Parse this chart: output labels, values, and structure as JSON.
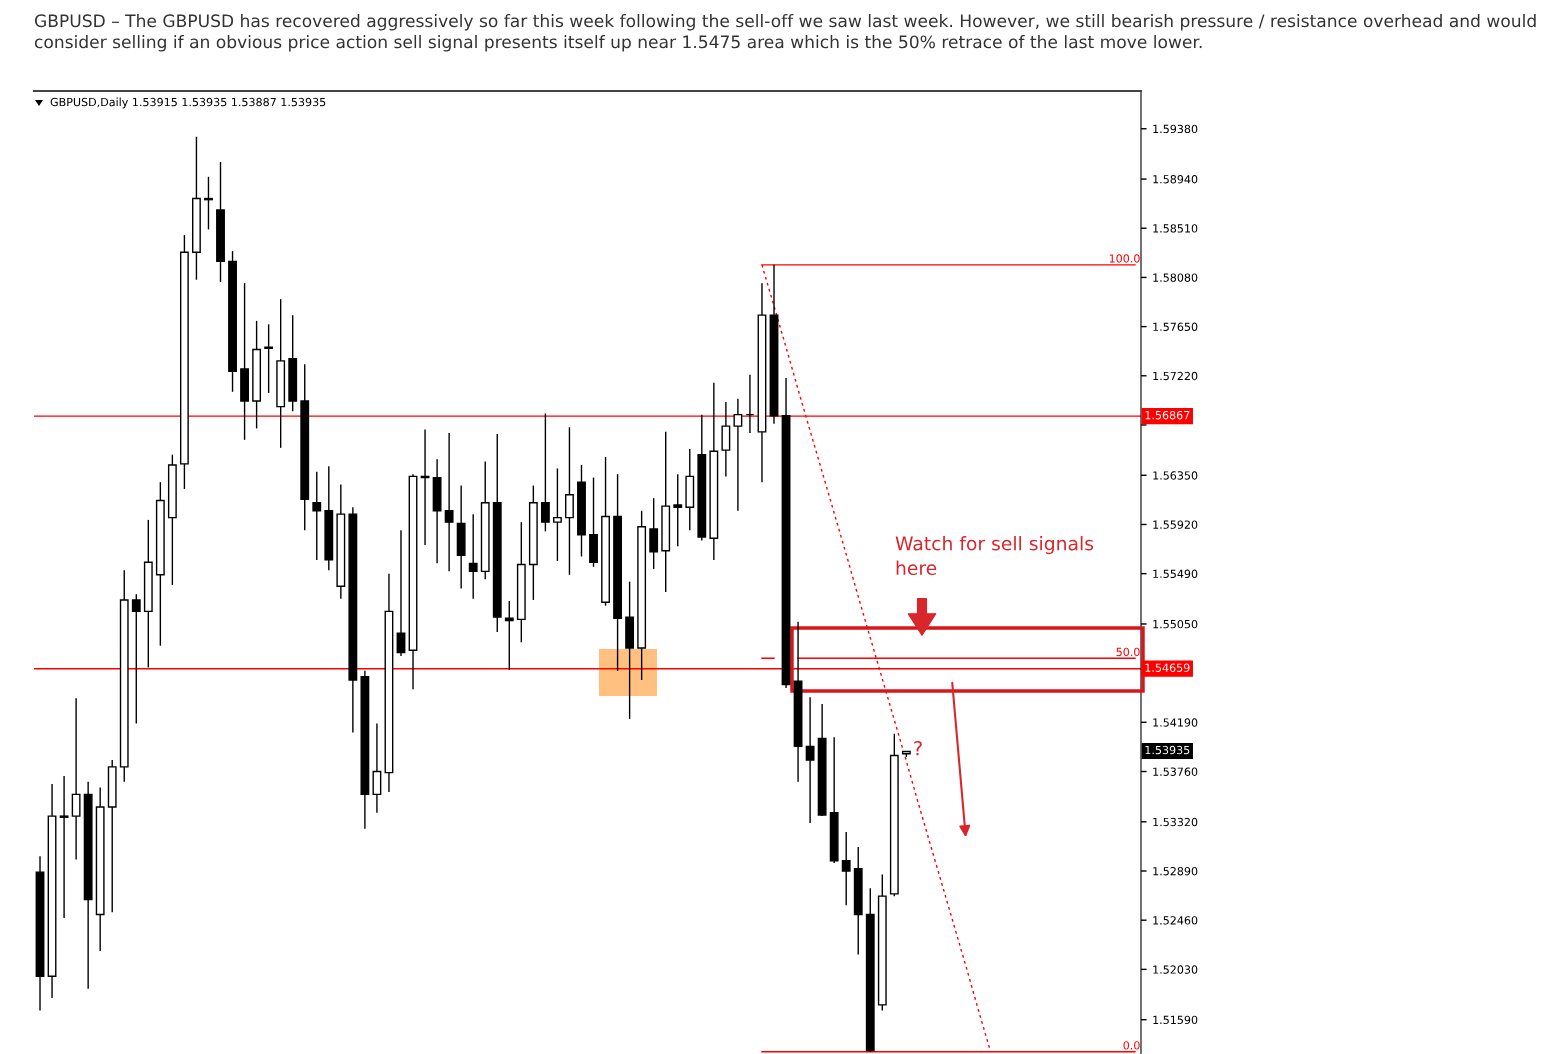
{
  "chart_data": {
    "type": "candlestick",
    "title": "GBPUSD – The GBPUSD has recovered aggressively so far this week following the sell-off we saw last week. However, we still bearish pressure / resistance overhead and would consider selling if an obvious price action sell signal presents itself up near 1.5475 area which is the 50% retrace of the last move lower.",
    "color": "#000000",
    "categories": [
      null,
      null,
      null,
      null,
      null,
      null,
      null,
      null,
      null,
      null,
      null,
      null,
      null,
      null,
      null,
      null,
      null,
      null,
      null,
      null,
      null,
      null,
      null,
      null,
      null,
      null,
      null,
      null,
      null,
      null,
      null,
      null,
      null,
      null,
      null,
      null,
      null,
      null,
      null,
      null,
      null,
      null,
      null,
      null,
      null,
      null,
      null,
      null,
      null,
      null,
      null,
      null,
      null,
      null,
      null,
      null,
      null,
      null,
      null,
      null,
      null,
      null,
      null,
      null,
      null,
      null,
      null,
      null,
      null,
      null,
      null,
      null,
      null,
      null,
      null,
      null,
      null,
      null,
      null,
      null,
      null,
      null,
      null,
      null,
      null,
      null,
      null,
      null,
      null,
      null,
      null,
      null
    ],
    "ohlc": [
      [
        1.5288,
        1.5302,
        1.5167,
        1.5197
      ],
      [
        1.5197,
        1.5365,
        1.5178,
        1.5337
      ],
      [
        1.5337,
        1.5372,
        1.5248,
        1.5336
      ],
      [
        1.5337,
        1.544,
        1.5299,
        1.5356
      ],
      [
        1.5356,
        1.5367,
        1.5186,
        1.5264
      ],
      [
        1.5251,
        1.5362,
        1.5219,
        1.5345
      ],
      [
        1.5345,
        1.5386,
        1.5253,
        1.538
      ],
      [
        1.538,
        1.5552,
        1.5367,
        1.5526
      ],
      [
        1.5526,
        1.5531,
        1.5418,
        1.5516
      ],
      [
        1.5516,
        1.5596,
        1.5467,
        1.5559
      ],
      [
        1.5548,
        1.5629,
        1.5486,
        1.5613
      ],
      [
        1.5598,
        1.5653,
        1.5539,
        1.5644
      ],
      [
        1.5645,
        1.5845,
        1.5623,
        1.583
      ],
      [
        1.583,
        1.5931,
        1.5806,
        1.5877
      ],
      [
        1.5877,
        1.5896,
        1.585,
        1.5876
      ],
      [
        1.5867,
        1.5909,
        1.5804,
        1.5822
      ],
      [
        1.5822,
        1.5831,
        1.5708,
        1.5726
      ],
      [
        1.5728,
        1.5803,
        1.5666,
        1.57
      ],
      [
        1.57,
        1.577,
        1.5676,
        1.5745
      ],
      [
        1.5747,
        1.5767,
        1.5707,
        1.5746
      ],
      [
        1.5695,
        1.5789,
        1.5659,
        1.5735
      ],
      [
        1.5737,
        1.5775,
        1.5691,
        1.57
      ],
      [
        1.57,
        1.5732,
        1.5587,
        1.5614
      ],
      [
        1.5611,
        1.5638,
        1.5561,
        1.5604
      ],
      [
        1.5604,
        1.5643,
        1.5552,
        1.5561
      ],
      [
        1.5538,
        1.5627,
        1.5527,
        1.5601
      ],
      [
        1.5601,
        1.5607,
        1.541,
        1.5456
      ],
      [
        1.5459,
        1.5464,
        1.5326,
        1.5356
      ],
      [
        1.5356,
        1.5418,
        1.534,
        1.5376
      ],
      [
        1.5375,
        1.5549,
        1.5358,
        1.5516
      ],
      [
        1.5497,
        1.5587,
        1.5477,
        1.548
      ],
      [
        1.5482,
        1.5636,
        1.5448,
        1.5634
      ],
      [
        1.5634,
        1.5675,
        1.5574,
        1.5633
      ],
      [
        1.5633,
        1.5649,
        1.5558,
        1.5604
      ],
      [
        1.5604,
        1.5672,
        1.5551,
        1.5594
      ],
      [
        1.5593,
        1.5626,
        1.5536,
        1.5565
      ],
      [
        1.5558,
        1.5601,
        1.5527,
        1.5551
      ],
      [
        1.5551,
        1.5647,
        1.5544,
        1.5611
      ],
      [
        1.5611,
        1.5671,
        1.5498,
        1.5511
      ],
      [
        1.551,
        1.5525,
        1.5465,
        1.5508
      ],
      [
        1.5509,
        1.5594,
        1.5489,
        1.5557
      ],
      [
        1.5557,
        1.5626,
        1.5526,
        1.5611
      ],
      [
        1.5611,
        1.5689,
        1.5586,
        1.5594
      ],
      [
        1.5594,
        1.5641,
        1.556,
        1.5598
      ],
      [
        1.5598,
        1.5677,
        1.5548,
        1.5618
      ],
      [
        1.5629,
        1.5644,
        1.5564,
        1.5583
      ],
      [
        1.5583,
        1.5633,
        1.5555,
        1.5559
      ],
      [
        1.5524,
        1.5651,
        1.5521,
        1.5599
      ],
      [
        1.5599,
        1.5636,
        1.5464,
        1.551
      ],
      [
        1.5511,
        1.5542,
        1.5422,
        1.5484
      ],
      [
        1.5484,
        1.5604,
        1.5456,
        1.559
      ],
      [
        1.5588,
        1.5615,
        1.5553,
        1.5568
      ],
      [
        1.5569,
        1.5673,
        1.5533,
        1.5608
      ],
      [
        1.5609,
        1.5636,
        1.5573,
        1.5607
      ],
      [
        1.5607,
        1.5658,
        1.5587,
        1.5634
      ],
      [
        1.5653,
        1.5688,
        1.5578,
        1.5581
      ],
      [
        1.558,
        1.5716,
        1.5561,
        1.5656
      ],
      [
        1.5657,
        1.5699,
        1.5634,
        1.5678
      ],
      [
        1.5678,
        1.5702,
        1.5604,
        1.5688
      ],
      [
        1.5688,
        1.5723,
        1.5672,
        1.5688
      ],
      [
        1.5673,
        1.5803,
        1.5629,
        1.5775
      ],
      [
        1.5775,
        1.5819,
        1.568,
        1.5687
      ],
      [
        1.5687,
        1.572,
        1.5449,
        1.5452
      ],
      [
        1.5455,
        1.5507,
        1.5367,
        1.5398
      ],
      [
        1.5398,
        1.5441,
        1.5331,
        1.5386
      ],
      [
        1.5405,
        1.5435,
        1.5337,
        1.5338
      ],
      [
        1.534,
        1.5406,
        1.5296,
        1.5298
      ],
      [
        1.5298,
        1.5323,
        1.5259,
        1.5289
      ],
      [
        1.5291,
        1.531,
        1.5216,
        1.5251
      ],
      [
        1.5251,
        1.5274,
        1.5131,
        1.5132
      ],
      [
        1.5172,
        1.5286,
        1.5167,
        1.5267
      ],
      [
        1.5269,
        1.5409,
        1.5267,
        1.539
      ],
      [
        1.53915,
        1.53935,
        1.53887,
        1.53935
      ],
      null,
      null,
      null,
      null,
      null,
      null,
      null,
      null,
      null,
      null,
      null,
      null,
      null,
      null,
      null,
      null,
      null,
      null,
      null
    ],
    "series": [
      {
        "type": "line",
        "name": "100.0",
        "color": "#ff0000",
        "line_style": "solid",
        "values": [
          null,
          null,
          null,
          null,
          null,
          null,
          null,
          null,
          null,
          null,
          null,
          null,
          null,
          null,
          null,
          null,
          null,
          null,
          null,
          null,
          null,
          null,
          null,
          null,
          null,
          null,
          null,
          null,
          null,
          null,
          null,
          null,
          null,
          null,
          null,
          null,
          null,
          null,
          null,
          null,
          null,
          null,
          null,
          null,
          null,
          null,
          null,
          null,
          null,
          null,
          null,
          null,
          null,
          null,
          null,
          null,
          null,
          null,
          null,
          null,
          1.5819,
          1.5819,
          1.5819,
          1.5819,
          1.5819,
          1.5819,
          1.5819,
          1.5819,
          1.5819,
          1.5819,
          1.5819,
          1.5819,
          1.5819,
          1.5819,
          1.5819,
          1.5819,
          1.5819,
          1.5819,
          1.5819,
          1.5819,
          1.5819,
          1.5819,
          1.5819,
          1.5819,
          1.5819,
          1.5819,
          1.5819,
          1.5819,
          1.5819,
          1.5819,
          1.5819,
          1.5819
        ]
      },
      {
        "type": "line",
        "name": "50.0",
        "color": "#ff0000",
        "line_style": "solid",
        "values": [
          null,
          null,
          null,
          null,
          null,
          null,
          null,
          null,
          null,
          null,
          null,
          null,
          null,
          null,
          null,
          null,
          null,
          null,
          null,
          null,
          null,
          null,
          null,
          null,
          null,
          null,
          null,
          null,
          null,
          null,
          null,
          null,
          null,
          null,
          null,
          null,
          null,
          null,
          null,
          null,
          null,
          null,
          null,
          null,
          null,
          null,
          null,
          null,
          null,
          null,
          null,
          null,
          null,
          null,
          null,
          null,
          null,
          null,
          null,
          null,
          1.5475,
          1.5475,
          null,
          1.5475,
          1.5475,
          1.5475,
          1.5475,
          1.5475,
          1.5475,
          1.5475,
          1.5475,
          1.5475,
          1.5475,
          1.5475,
          1.5475,
          1.5475,
          1.5475,
          1.5475,
          1.5475,
          1.5475,
          1.5475,
          1.5475,
          1.5475,
          1.5475,
          1.5475,
          1.5475,
          1.5475,
          1.5475,
          1.5475,
          1.5475,
          1.5475,
          1.5475
        ]
      },
      {
        "type": "line",
        "name": "0.0",
        "color": "#ff0000",
        "line_style": "solid",
        "values": [
          null,
          null,
          null,
          null,
          null,
          null,
          null,
          null,
          null,
          null,
          null,
          null,
          null,
          null,
          null,
          null,
          null,
          null,
          null,
          null,
          null,
          null,
          null,
          null,
          null,
          null,
          null,
          null,
          null,
          null,
          null,
          null,
          null,
          null,
          null,
          null,
          null,
          null,
          null,
          null,
          null,
          null,
          null,
          null,
          null,
          null,
          null,
          null,
          null,
          null,
          null,
          null,
          null,
          null,
          null,
          null,
          null,
          null,
          null,
          null,
          1.5131,
          1.5131,
          1.5131,
          1.5131,
          1.5131,
          1.5131,
          1.5131,
          1.5131,
          1.5131,
          1.5131,
          1.5131,
          1.5131,
          1.5131,
          1.5131,
          1.5131,
          1.5131,
          1.5131,
          1.5131,
          1.5131,
          1.5131,
          1.5131,
          1.5131,
          1.5131,
          1.5131,
          1.5131,
          1.5131,
          1.5131,
          1.5131,
          1.5131,
          1.5131,
          1.5131,
          1.5131
        ]
      },
      {
        "type": "line",
        "color": "#ff0000",
        "line_style": "dotted",
        "values": [
          null,
          null,
          null,
          null,
          null,
          null,
          null,
          null,
          null,
          null,
          null,
          null,
          null,
          null,
          null,
          null,
          null,
          null,
          null,
          null,
          null,
          null,
          null,
          null,
          null,
          null,
          null,
          null,
          null,
          null,
          null,
          null,
          null,
          null,
          null,
          null,
          null,
          null,
          null,
          null,
          null,
          null,
          null,
          null,
          null,
          null,
          null,
          null,
          null,
          null,
          null,
          null,
          null,
          null,
          null,
          null,
          null,
          null,
          null,
          null,
          1.5819,
          1.5783,
          1.5747,
          1.571,
          1.5674,
          1.5638,
          1.5602,
          1.5566,
          1.5529,
          1.5493,
          1.5457,
          1.5421,
          1.5385,
          1.5348,
          1.5312,
          1.5276,
          1.524,
          1.5204,
          1.5167,
          1.5131,
          null,
          null,
          null,
          null,
          null,
          null,
          null,
          null,
          null,
          null,
          null,
          null
        ]
      }
    ],
    "ref_lines": [
      {
        "axis": "y",
        "value": 1.56867,
        "label": "1.56867",
        "color": "#ff0000"
      },
      {
        "axis": "y",
        "value": 1.54659,
        "label": "1.54659",
        "color": "#ff0000"
      }
    ],
    "annotations": [
      "GBPUSD,Daily 1.53915 1.53935 1.53887 1.53935",
      "Watch for sell signals\nhere",
      "?",
      "1.53935"
    ],
    "ylim": [
      1.5129,
      1.5971
    ],
    "yticks": [
      {
        "value": 1.5938,
        "label": "1.59380"
      },
      {
        "value": 1.5894,
        "label": "1.58940"
      },
      {
        "value": 1.5851,
        "label": "1.58510"
      },
      {
        "value": 1.5808,
        "label": "1.58080"
      },
      {
        "value": 1.5765,
        "label": "1.57650"
      },
      {
        "value": 1.5722,
        "label": "1.57220"
      },
      {
        "value": 1.5679,
        "label": null
      },
      {
        "value": 1.5635,
        "label": "1.56350"
      },
      {
        "value": 1.5592,
        "label": "1.55920"
      },
      {
        "value": 1.5549,
        "label": "1.55490"
      },
      {
        "value": 1.5505,
        "label": "1.55050"
      },
      {
        "value": 1.5462,
        "label": null
      },
      {
        "value": 1.5419,
        "label": "1.54190"
      },
      {
        "value": 1.5376,
        "label": "1.53760"
      },
      {
        "value": 1.5332,
        "label": "1.53320"
      },
      {
        "value": 1.5289,
        "label": "1.52890"
      },
      {
        "value": 1.5246,
        "label": "1.52460"
      },
      {
        "value": 1.5203,
        "label": "1.52030"
      },
      {
        "value": 1.5159,
        "label": "1.51590"
      }
    ],
    "tick_labels": "y"
  }
}
